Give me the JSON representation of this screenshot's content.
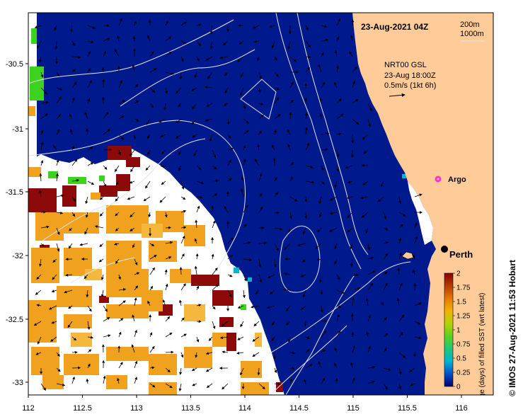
{
  "map": {
    "date_label": "23-Aug-2021 04Z",
    "depth_legend": [
      "200m",
      "1000m"
    ],
    "current_info": [
      "NRT00 GSL",
      "23-Aug 18:00Z",
      "0.5m/s (1kt 6h)"
    ],
    "argo_label": "Argo",
    "city_label": "Perth",
    "credit": "© IMOS 27-Aug-2021 11:53 Hobart",
    "lon_ticks": [
      "112",
      "112.5",
      "113",
      "113.5",
      "114",
      "114.5",
      "115",
      "115.5",
      "116"
    ],
    "lat_ticks": [
      "-30.5",
      "-31",
      "-31.5",
      "-32",
      "-32.5",
      "-33"
    ],
    "colors": {
      "ocean": "#00198c",
      "land": "#ffcc99",
      "cloud": "#ffffff",
      "contour": "#dfe4f2"
    }
  },
  "colorbar": {
    "title": "Age (days) of filled SST (wrt latest)",
    "ticks": [
      "0",
      "0.25",
      "0.5",
      "0.75",
      "1",
      "1.25",
      "1.5",
      "1.75",
      "2"
    ],
    "stops": [
      "#00006a",
      "#0050c8",
      "#00b4d2",
      "#1ec878",
      "#5ad21e",
      "#b4d200",
      "#f0b400",
      "#e67800",
      "#b43c00",
      "#8c0000"
    ]
  }
}
